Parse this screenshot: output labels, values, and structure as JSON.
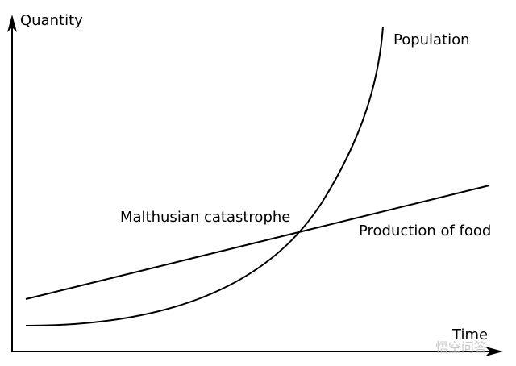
{
  "axes": {
    "y_label": "Quantity",
    "x_label": "Time"
  },
  "curves": {
    "population": "Population",
    "food": "Production of food"
  },
  "annotation": "Malthusian catastrophe",
  "watermark": "悟空问答"
}
